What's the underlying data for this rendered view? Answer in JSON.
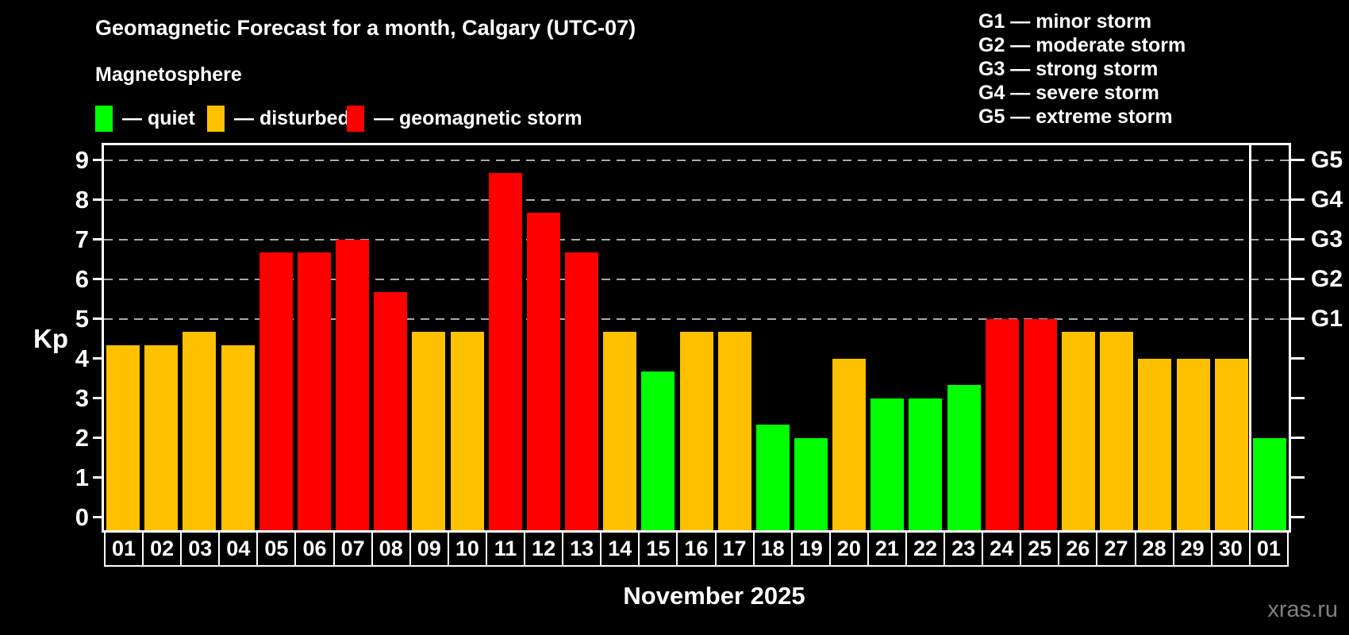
{
  "title": "Geomagnetic Forecast for a month, Calgary (UTC-07)",
  "subtitle": "Magnetosphere",
  "legend": {
    "items": [
      {
        "key": "quiet",
        "label": "— quiet",
        "color": "#00ff00"
      },
      {
        "key": "disturbed",
        "label": "— disturbed",
        "color": "#ffc000"
      },
      {
        "key": "storm",
        "label": "— geomagnetic storm",
        "color": "#ff0000"
      }
    ]
  },
  "storm_scale_legend": [
    {
      "label": "G1 — minor storm"
    },
    {
      "label": "G2 — moderate storm"
    },
    {
      "label": "G3 — strong storm"
    },
    {
      "label": "G4 — severe storm"
    },
    {
      "label": "G5 — extreme storm"
    }
  ],
  "y_axis": {
    "label": "Kp",
    "ticks": [
      "0",
      "1",
      "2",
      "3",
      "4",
      "5",
      "6",
      "7",
      "8",
      "9"
    ]
  },
  "x_axis": {
    "month_label": "November 2025"
  },
  "watermark": "xras.ru",
  "chart_data": {
    "type": "bar",
    "title": "Geomagnetic Forecast for a month, Calgary (UTC-07)",
    "xlabel": "November 2025",
    "ylabel": "Kp",
    "ylim": [
      0,
      9
    ],
    "grid": "dashed horizontal lines at Kp 5-9 only",
    "legend_position": "top-left colors, top-right G-scale",
    "categories": [
      "01",
      "02",
      "03",
      "04",
      "05",
      "06",
      "07",
      "08",
      "09",
      "10",
      "11",
      "12",
      "13",
      "14",
      "15",
      "16",
      "17",
      "18",
      "19",
      "20",
      "21",
      "22",
      "23",
      "24",
      "25",
      "26",
      "27",
      "28",
      "29",
      "30",
      "01"
    ],
    "values": [
      4.33,
      4.33,
      4.67,
      4.33,
      6.67,
      6.67,
      7.0,
      5.67,
      4.67,
      4.67,
      8.67,
      7.67,
      6.67,
      4.67,
      3.67,
      4.67,
      4.67,
      2.33,
      2.0,
      4.0,
      3.0,
      3.0,
      3.33,
      5.0,
      5.0,
      4.67,
      4.67,
      4.0,
      4.0,
      4.0,
      2.0
    ],
    "statuses": [
      "disturbed",
      "disturbed",
      "disturbed",
      "disturbed",
      "storm",
      "storm",
      "storm",
      "storm",
      "disturbed",
      "disturbed",
      "storm",
      "storm",
      "storm",
      "disturbed",
      "quiet",
      "disturbed",
      "disturbed",
      "quiet",
      "quiet",
      "disturbed",
      "quiet",
      "quiet",
      "quiet",
      "storm",
      "storm",
      "disturbed",
      "disturbed",
      "disturbed",
      "disturbed",
      "disturbed",
      "quiet"
    ],
    "gridline_values": [
      5,
      6,
      7,
      8,
      9
    ],
    "right_axis_labels": [
      {
        "label": "G5",
        "value": 9
      },
      {
        "label": "G4",
        "value": 8
      },
      {
        "label": "G3",
        "value": 7
      },
      {
        "label": "G2",
        "value": 6
      },
      {
        "label": "G1",
        "value": 5
      }
    ],
    "month_boundary_after_index": 29
  }
}
